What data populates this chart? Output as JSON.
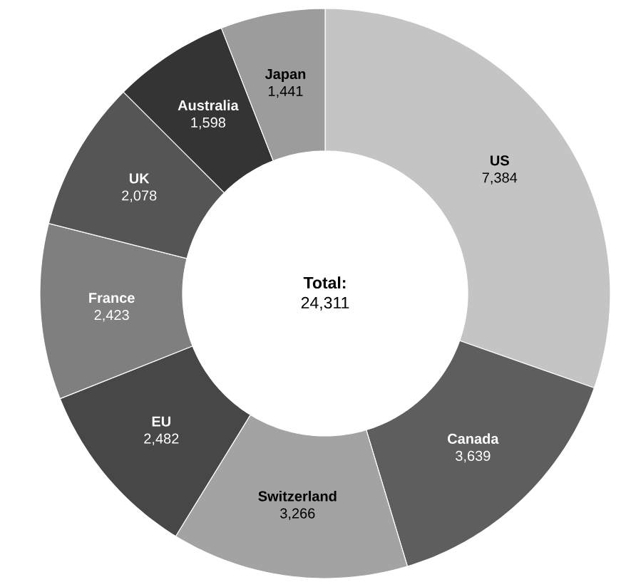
{
  "chart_data": {
    "type": "donut",
    "title": "Total:",
    "subtitle": "24,311",
    "categories": [
      "US",
      "Canada",
      "Switzerland",
      "EU",
      "France",
      "UK",
      "Australia",
      "Japan"
    ],
    "values": [
      7384,
      3639,
      3266,
      2482,
      2423,
      2078,
      1598,
      1441
    ],
    "value_labels": [
      "7,384",
      "3,639",
      "3,266",
      "2,482",
      "2,423",
      "2,078",
      "1,598",
      "1,441"
    ],
    "colors": [
      "#c4c4c4",
      "#5e5e5e",
      "#a3a3a3",
      "#474747",
      "#7f7f7f",
      "#555555",
      "#343434",
      "#9c9c9c"
    ]
  }
}
